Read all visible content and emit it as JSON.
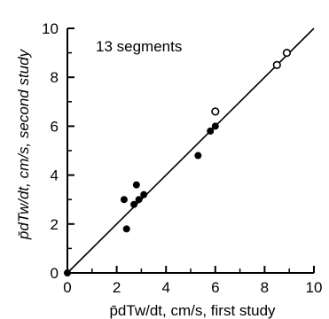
{
  "chart_data": {
    "type": "scatter",
    "xlabel": "p̄dTw/dt, cm/s, first study",
    "ylabel": "p̄dTw/dt, cm/s, second study",
    "annotation": "13 segments",
    "xlim": [
      0,
      10
    ],
    "ylim": [
      0,
      10
    ],
    "xticks": [
      "0",
      "2",
      "4",
      "6",
      "8",
      "10"
    ],
    "yticks": [
      "0",
      "2",
      "4",
      "6",
      "8",
      "10"
    ],
    "identity_line": [
      [
        0,
        0
      ],
      [
        10,
        10
      ]
    ],
    "series": [
      {
        "marker": "filled",
        "points": [
          [
            0.0,
            0.0
          ],
          [
            2.3,
            3.0
          ],
          [
            2.4,
            1.8
          ],
          [
            2.7,
            2.8
          ],
          [
            2.8,
            3.6
          ],
          [
            2.9,
            3.0
          ],
          [
            3.1,
            3.2
          ],
          [
            5.3,
            4.8
          ],
          [
            5.8,
            5.8
          ],
          [
            6.0,
            6.0
          ]
        ]
      },
      {
        "marker": "open",
        "points": [
          [
            6.0,
            6.6
          ],
          [
            8.5,
            8.5
          ],
          [
            8.9,
            9.0
          ]
        ]
      }
    ]
  }
}
